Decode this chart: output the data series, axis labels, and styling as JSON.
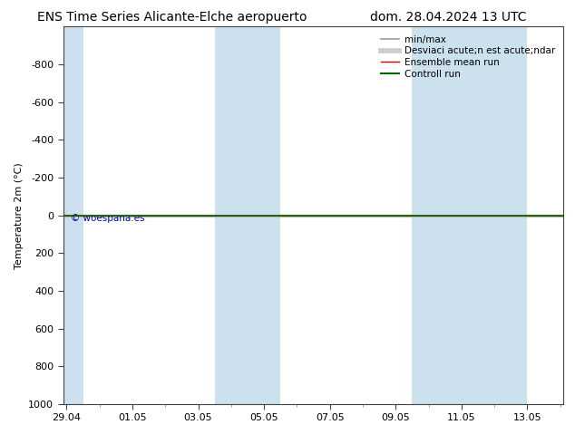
{
  "title_left": "ENS Time Series Alicante-Elche aeropuerto",
  "title_right": "dom. 28.04.2024 13 UTC",
  "ylabel": "Temperature 2m (°C)",
  "ylim": [
    -1000,
    1000
  ],
  "yticks": [
    -800,
    -600,
    -400,
    -200,
    0,
    200,
    400,
    600,
    800,
    1000
  ],
  "xtick_labels": [
    "29.04",
    "01.05",
    "03.05",
    "05.05",
    "07.05",
    "09.05",
    "11.05",
    "13.05"
  ],
  "xtick_positions": [
    0,
    2,
    4,
    6,
    8,
    10,
    12,
    14
  ],
  "xlim": [
    -0.1,
    15.1
  ],
  "watermark": "© woespana.es",
  "background_color": "#ffffff",
  "plot_bg_color": "#ffffff",
  "shaded_bands": [
    {
      "start": -0.1,
      "end": 0.5,
      "color": "#cce0ee"
    },
    {
      "start": 4.5,
      "end": 6.5,
      "color": "#cce0ee"
    },
    {
      "start": 10.5,
      "end": 14.0,
      "color": "#cce0ee"
    }
  ],
  "ensemble_mean_color": "#cc0000",
  "control_run_color": "#006600",
  "min_max_color": "#999999",
  "std_dev_color": "#cccccc",
  "title_fontsize": 10,
  "axis_fontsize": 8,
  "tick_fontsize": 8,
  "legend_fontsize": 7.5
}
